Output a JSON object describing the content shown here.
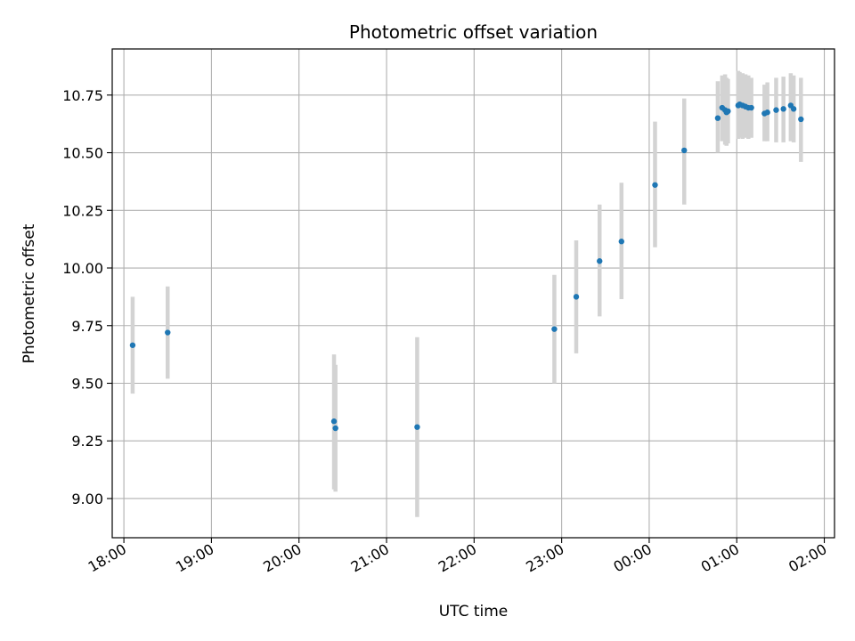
{
  "chart_data": {
    "type": "scatter",
    "title": "Photometric offset variation",
    "xlabel": "UTC time",
    "ylabel": "Photometric offset",
    "x_unit": "hours (UTC, continuous across midnight)",
    "xlim": [
      "17:52",
      "02:07"
    ],
    "ylim": [
      8.83,
      10.95
    ],
    "grid": true,
    "point_color": "#1f77b4",
    "errorbar_color": "#d3d3d3",
    "x_ticks": [
      {
        "label": "18:00",
        "time": "18:00"
      },
      {
        "label": "19:00",
        "time": "19:00"
      },
      {
        "label": "20:00",
        "time": "20:00"
      },
      {
        "label": "21:00",
        "time": "21:00"
      },
      {
        "label": "22:00",
        "time": "22:00"
      },
      {
        "label": "23:00",
        "time": "23:00"
      },
      {
        "label": "00:00",
        "time": "24:00"
      },
      {
        "label": "01:00",
        "time": "25:00"
      },
      {
        "label": "02:00",
        "time": "26:00"
      }
    ],
    "y_ticks": [
      {
        "label": "9.00",
        "value": 9.0
      },
      {
        "label": "9.25",
        "value": 9.25
      },
      {
        "label": "9.50",
        "value": 9.5
      },
      {
        "label": "9.75",
        "value": 9.75
      },
      {
        "label": "10.00",
        "value": 10.0
      },
      {
        "label": "10.25",
        "value": 10.25
      },
      {
        "label": "10.50",
        "value": 10.5
      },
      {
        "label": "10.75",
        "value": 10.75
      }
    ],
    "points": [
      {
        "time": "18:06",
        "y": 9.665,
        "low": 9.455,
        "high": 9.875
      },
      {
        "time": "18:30",
        "y": 9.72,
        "low": 9.52,
        "high": 9.92
      },
      {
        "time": "20:24",
        "y": 9.335,
        "low": 9.04,
        "high": 9.625
      },
      {
        "time": "20:25",
        "y": 9.305,
        "low": 9.03,
        "high": 9.58
      },
      {
        "time": "21:21",
        "y": 9.31,
        "low": 8.92,
        "high": 9.7
      },
      {
        "time": "22:55",
        "y": 9.735,
        "low": 9.5,
        "high": 9.97
      },
      {
        "time": "23:10",
        "y": 9.875,
        "low": 9.63,
        "high": 10.12
      },
      {
        "time": "23:26",
        "y": 10.03,
        "low": 9.79,
        "high": 10.275
      },
      {
        "time": "23:41",
        "y": 10.115,
        "low": 9.865,
        "high": 10.37
      },
      {
        "time": "00:04",
        "y": 10.36,
        "low": 10.09,
        "high": 10.635
      },
      {
        "time": "00:24",
        "y": 10.51,
        "low": 10.275,
        "high": 10.735
      },
      {
        "time": "00:47",
        "y": 10.65,
        "low": 10.5,
        "high": 10.81
      },
      {
        "time": "00:50",
        "y": 10.695,
        "low": 10.55,
        "high": 10.835
      },
      {
        "time": "00:52",
        "y": 10.685,
        "low": 10.535,
        "high": 10.84
      },
      {
        "time": "00:53",
        "y": 10.675,
        "low": 10.53,
        "high": 10.825
      },
      {
        "time": "00:54",
        "y": 10.68,
        "low": 10.54,
        "high": 10.82
      },
      {
        "time": "01:01",
        "y": 10.705,
        "low": 10.56,
        "high": 10.855
      },
      {
        "time": "01:02",
        "y": 10.71,
        "low": 10.565,
        "high": 10.85
      },
      {
        "time": "01:04",
        "y": 10.705,
        "low": 10.56,
        "high": 10.845
      },
      {
        "time": "01:06",
        "y": 10.7,
        "low": 10.565,
        "high": 10.84
      },
      {
        "time": "01:08",
        "y": 10.695,
        "low": 10.56,
        "high": 10.835
      },
      {
        "time": "01:10",
        "y": 10.695,
        "low": 10.565,
        "high": 10.825
      },
      {
        "time": "01:19",
        "y": 10.67,
        "low": 10.55,
        "high": 10.795
      },
      {
        "time": "01:21",
        "y": 10.675,
        "low": 10.55,
        "high": 10.805
      },
      {
        "time": "01:27",
        "y": 10.685,
        "low": 10.545,
        "high": 10.825
      },
      {
        "time": "01:32",
        "y": 10.69,
        "low": 10.545,
        "high": 10.83
      },
      {
        "time": "01:37",
        "y": 10.705,
        "low": 10.55,
        "high": 10.845
      },
      {
        "time": "01:39",
        "y": 10.69,
        "low": 10.545,
        "high": 10.835
      },
      {
        "time": "01:44",
        "y": 10.645,
        "low": 10.46,
        "high": 10.825
      }
    ]
  }
}
